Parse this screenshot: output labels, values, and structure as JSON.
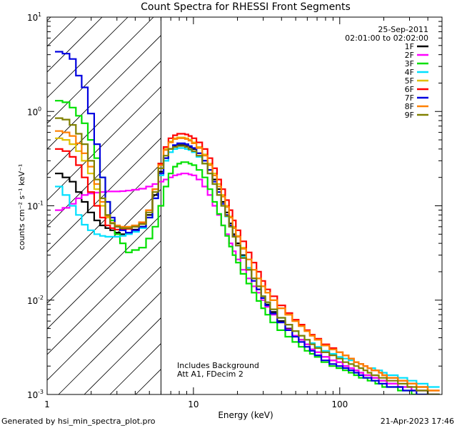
{
  "chart_data": {
    "type": "line",
    "title": "Count Spectra for RHESSI Front Segments",
    "xlabel": "Energy (keV)",
    "ylabel": "counts cm⁻² s⁻¹ keV⁻¹",
    "xscale": "log",
    "yscale": "log",
    "xlim": [
      1,
      500
    ],
    "ylim": [
      0.001,
      10
    ],
    "x_ticks": [
      {
        "value": 1,
        "label": "1"
      },
      {
        "value": 10,
        "label": "10"
      },
      {
        "value": 100,
        "label": "100"
      }
    ],
    "y_ticks": [
      {
        "value": 0.001,
        "base": "10",
        "exp": "-3"
      },
      {
        "value": 0.01,
        "base": "10",
        "exp": "-2"
      },
      {
        "value": 0.1,
        "base": "10",
        "exp": "-1"
      },
      {
        "value": 1,
        "base": "10",
        "exp": "0"
      },
      {
        "value": 10,
        "base": "10",
        "exp": "1"
      }
    ],
    "hatched_region_max_energy": 6,
    "date": "25-Sep-2011",
    "time_range": "02:01:00 to 02:02:00",
    "annotation_1": "Includes Background",
    "annotation_2": "Att A1, FDecim 2",
    "energies": [
      1.2,
      1.35,
      1.5,
      1.65,
      1.8,
      2.0,
      2.2,
      2.4,
      2.6,
      2.8,
      3.0,
      3.3,
      3.6,
      4.0,
      4.5,
      5.0,
      5.5,
      6.0,
      6.5,
      7.0,
      7.5,
      8.0,
      8.5,
      9.0,
      9.5,
      10,
      11,
      12,
      13,
      14,
      15,
      16,
      17,
      18,
      19,
      20,
      22,
      24,
      26,
      28,
      30,
      32,
      35,
      40,
      45,
      50,
      55,
      60,
      65,
      70,
      80,
      90,
      100,
      110,
      120,
      130,
      140,
      150,
      160,
      170,
      180,
      190,
      200,
      220,
      240,
      260,
      280,
      300,
      320,
      350,
      380,
      420,
      460
    ],
    "series": [
      {
        "name": "1F",
        "color": "#000000",
        "values": [
          0.22,
          0.2,
          0.18,
          0.14,
          0.11,
          0.085,
          0.07,
          0.062,
          0.058,
          0.055,
          0.052,
          0.05,
          0.052,
          0.056,
          0.06,
          0.08,
          0.13,
          0.23,
          0.32,
          0.4,
          0.43,
          0.44,
          0.44,
          0.43,
          0.42,
          0.4,
          0.36,
          0.3,
          0.24,
          0.19,
          0.15,
          0.11,
          0.085,
          0.065,
          0.05,
          0.04,
          0.03,
          0.022,
          0.017,
          0.013,
          0.011,
          0.009,
          0.0075,
          0.006,
          0.005,
          0.0042,
          0.0038,
          0.0034,
          0.003,
          0.0028,
          0.0025,
          0.0023,
          0.0022,
          0.002,
          0.0019,
          0.0018,
          0.0017,
          0.0016,
          0.0016,
          0.0015,
          0.0015,
          0.0014,
          0.0014,
          0.0013,
          0.0013,
          0.0012,
          0.0012,
          0.0012,
          0.0011,
          0.0011,
          0.0011,
          0.001,
          0.001
        ]
      },
      {
        "name": "2F",
        "color": "#ff00ff",
        "values": [
          0.09,
          0.095,
          0.105,
          0.12,
          0.13,
          0.135,
          0.138,
          0.14,
          0.142,
          0.142,
          0.142,
          0.143,
          0.145,
          0.148,
          0.152,
          0.16,
          0.17,
          0.18,
          0.19,
          0.2,
          0.21,
          0.215,
          0.22,
          0.22,
          0.215,
          0.21,
          0.19,
          0.16,
          0.13,
          0.1,
          0.08,
          0.062,
          0.05,
          0.04,
          0.033,
          0.027,
          0.021,
          0.017,
          0.014,
          0.012,
          0.01,
          0.0085,
          0.007,
          0.0058,
          0.0049,
          0.0042,
          0.0038,
          0.0034,
          0.003,
          0.0028,
          0.0025,
          0.0023,
          0.0022,
          0.002,
          0.0019,
          0.0018,
          0.0017,
          0.0016,
          0.0016,
          0.0015,
          0.0015,
          0.0014,
          0.0014,
          0.0013,
          0.0013,
          0.0012,
          0.0012,
          0.0012,
          0.0011,
          0.0011,
          0.0011,
          0.001,
          0.001
        ]
      },
      {
        "name": "3F",
        "color": "#00e000",
        "values": [
          1.3,
          1.25,
          1.1,
          0.9,
          0.75,
          0.5,
          0.32,
          0.2,
          0.11,
          0.07,
          0.05,
          0.04,
          0.032,
          0.034,
          0.036,
          0.045,
          0.06,
          0.1,
          0.16,
          0.22,
          0.26,
          0.28,
          0.29,
          0.29,
          0.28,
          0.27,
          0.24,
          0.2,
          0.15,
          0.11,
          0.082,
          0.062,
          0.048,
          0.037,
          0.03,
          0.025,
          0.019,
          0.015,
          0.012,
          0.0098,
          0.0082,
          0.007,
          0.0058,
          0.0048,
          0.0041,
          0.0036,
          0.0032,
          0.0029,
          0.0027,
          0.0025,
          0.0022,
          0.002,
          0.0019,
          0.0018,
          0.0017,
          0.0016,
          0.0015,
          0.0015,
          0.0014,
          0.0014,
          0.0013,
          0.0013,
          0.0012,
          0.0012,
          0.0012,
          0.0011,
          0.0011,
          0.0011,
          0.001,
          0.001,
          0.001,
          0.001,
          0.001
        ]
      },
      {
        "name": "4F",
        "color": "#00e0ff",
        "values": [
          0.16,
          0.13,
          0.1,
          0.08,
          0.063,
          0.055,
          0.05,
          0.048,
          0.047,
          0.047,
          0.047,
          0.048,
          0.05,
          0.053,
          0.058,
          0.075,
          0.12,
          0.21,
          0.3,
          0.37,
          0.4,
          0.41,
          0.41,
          0.4,
          0.39,
          0.37,
          0.33,
          0.28,
          0.22,
          0.17,
          0.13,
          0.1,
          0.077,
          0.06,
          0.047,
          0.038,
          0.029,
          0.022,
          0.017,
          0.014,
          0.011,
          0.0095,
          0.008,
          0.0065,
          0.0055,
          0.0047,
          0.0042,
          0.0038,
          0.0035,
          0.0032,
          0.0029,
          0.0027,
          0.0025,
          0.0024,
          0.0023,
          0.0022,
          0.0021,
          0.002,
          0.0019,
          0.0019,
          0.0018,
          0.0018,
          0.0017,
          0.0016,
          0.0016,
          0.0015,
          0.0015,
          0.0014,
          0.0014,
          0.0013,
          0.0013,
          0.0012,
          0.0012
        ]
      },
      {
        "name": "5F",
        "color": "#e0c000",
        "values": [
          0.52,
          0.5,
          0.45,
          0.38,
          0.3,
          0.22,
          0.15,
          0.1,
          0.075,
          0.065,
          0.06,
          0.058,
          0.058,
          0.06,
          0.065,
          0.09,
          0.15,
          0.28,
          0.4,
          0.48,
          0.52,
          0.53,
          0.53,
          0.52,
          0.5,
          0.47,
          0.42,
          0.35,
          0.28,
          0.22,
          0.17,
          0.13,
          0.1,
          0.077,
          0.06,
          0.048,
          0.036,
          0.027,
          0.021,
          0.017,
          0.014,
          0.012,
          0.01,
          0.0082,
          0.007,
          0.006,
          0.0053,
          0.0047,
          0.0042,
          0.0038,
          0.0033,
          0.003,
          0.0028,
          0.0026,
          0.0024,
          0.0022,
          0.0021,
          0.002,
          0.0019,
          0.0018,
          0.0018,
          0.0017,
          0.0016,
          0.0015,
          0.0015,
          0.0014,
          0.0014,
          0.0013,
          0.0013,
          0.0012,
          0.0012,
          0.0011,
          0.0011
        ]
      },
      {
        "name": "6F",
        "color": "#ff0000",
        "values": [
          0.4,
          0.38,
          0.33,
          0.27,
          0.2,
          0.14,
          0.1,
          0.075,
          0.062,
          0.058,
          0.056,
          0.056,
          0.057,
          0.06,
          0.066,
          0.09,
          0.15,
          0.28,
          0.42,
          0.52,
          0.56,
          0.58,
          0.58,
          0.57,
          0.55,
          0.52,
          0.47,
          0.4,
          0.32,
          0.25,
          0.19,
          0.15,
          0.115,
          0.09,
          0.07,
          0.055,
          0.042,
          0.032,
          0.025,
          0.02,
          0.016,
          0.013,
          0.011,
          0.0088,
          0.0073,
          0.0062,
          0.0055,
          0.0048,
          0.0043,
          0.0039,
          0.0034,
          0.0031,
          0.0028,
          0.0026,
          0.0024,
          0.0022,
          0.0021,
          0.002,
          0.0019,
          0.0018,
          0.0018,
          0.0017,
          0.0016,
          0.0015,
          0.0015,
          0.0014,
          0.0014,
          0.0013,
          0.0013,
          0.0012,
          0.0012,
          0.0011,
          0.0011
        ]
      },
      {
        "name": "7F",
        "color": "#0000e0",
        "values": [
          4.3,
          4.1,
          3.6,
          2.4,
          1.8,
          0.95,
          0.45,
          0.2,
          0.11,
          0.075,
          0.06,
          0.055,
          0.052,
          0.055,
          0.06,
          0.075,
          0.12,
          0.22,
          0.32,
          0.4,
          0.44,
          0.46,
          0.46,
          0.45,
          0.43,
          0.41,
          0.36,
          0.3,
          0.24,
          0.18,
          0.14,
          0.105,
          0.08,
          0.062,
          0.048,
          0.038,
          0.028,
          0.021,
          0.016,
          0.013,
          0.0105,
          0.0088,
          0.0072,
          0.0058,
          0.0048,
          0.0041,
          0.0036,
          0.0032,
          0.0029,
          0.0026,
          0.0023,
          0.0021,
          0.002,
          0.0019,
          0.0018,
          0.0017,
          0.0016,
          0.0015,
          0.0015,
          0.0014,
          0.0014,
          0.0013,
          0.0013,
          0.0012,
          0.0012,
          0.0012,
          0.0011,
          0.0011,
          0.0011,
          0.001,
          0.001,
          0.001,
          0.001
        ]
      },
      {
        "name": "8F",
        "color": "#ff8000",
        "values": [
          0.62,
          0.6,
          0.55,
          0.46,
          0.36,
          0.26,
          0.17,
          0.11,
          0.078,
          0.066,
          0.062,
          0.06,
          0.06,
          0.062,
          0.067,
          0.09,
          0.15,
          0.27,
          0.39,
          0.47,
          0.51,
          0.52,
          0.52,
          0.51,
          0.49,
          0.46,
          0.41,
          0.34,
          0.27,
          0.21,
          0.16,
          0.125,
          0.097,
          0.075,
          0.058,
          0.047,
          0.035,
          0.027,
          0.021,
          0.017,
          0.014,
          0.012,
          0.01,
          0.0082,
          0.007,
          0.006,
          0.0053,
          0.0047,
          0.0042,
          0.0038,
          0.0033,
          0.003,
          0.0028,
          0.0026,
          0.0024,
          0.0022,
          0.0021,
          0.002,
          0.0019,
          0.0018,
          0.0018,
          0.0017,
          0.0016,
          0.0015,
          0.0015,
          0.0014,
          0.0014,
          0.0013,
          0.0013,
          0.0012,
          0.0012,
          0.0011,
          0.0011
        ]
      },
      {
        "name": "9F",
        "color": "#808000",
        "values": [
          0.85,
          0.82,
          0.72,
          0.58,
          0.45,
          0.3,
          0.19,
          0.12,
          0.08,
          0.065,
          0.06,
          0.058,
          0.058,
          0.06,
          0.064,
          0.085,
          0.14,
          0.25,
          0.34,
          0.4,
          0.42,
          0.43,
          0.43,
          0.42,
          0.4,
          0.38,
          0.34,
          0.28,
          0.22,
          0.17,
          0.13,
          0.1,
          0.078,
          0.06,
          0.047,
          0.038,
          0.028,
          0.021,
          0.017,
          0.014,
          0.011,
          0.0095,
          0.008,
          0.0065,
          0.0055,
          0.0047,
          0.0042,
          0.0038,
          0.0034,
          0.0031,
          0.0028,
          0.0026,
          0.0024,
          0.0022,
          0.0021,
          0.002,
          0.0019,
          0.0018,
          0.0017,
          0.0016,
          0.0016,
          0.0015,
          0.0015,
          0.0014,
          0.0014,
          0.0013,
          0.0013,
          0.0012,
          0.0012,
          0.0011,
          0.0011,
          0.001,
          0.001
        ]
      }
    ]
  },
  "footer": {
    "generated_by": "Generated by hsi_min_spectra_plot.pro",
    "timestamp": "21-Apr-2023 17:46"
  }
}
